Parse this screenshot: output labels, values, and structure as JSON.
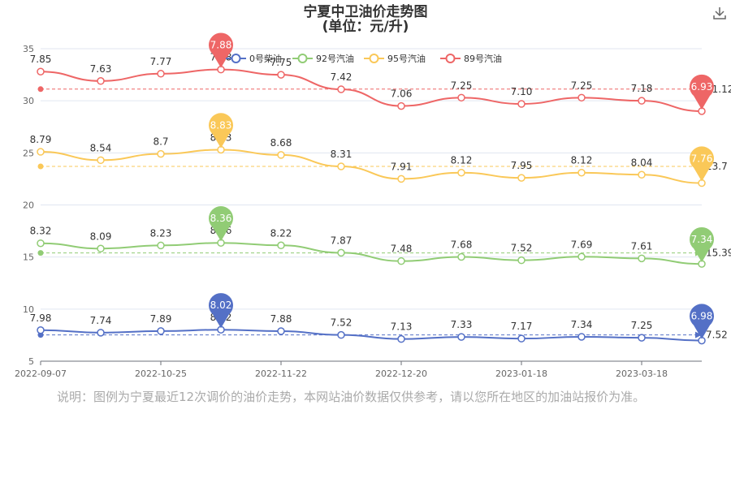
{
  "title": "宁夏中卫油价走势图",
  "subtitle": "(单位：元/升)",
  "download_icon": "download-icon",
  "note": "说明：图例为宁夏最近12次调价的油价走势，本网站油价数据仅供参考，请以您所在地区的加油站报价为准。",
  "chart_data": {
    "type": "line",
    "title": "宁夏中卫油价走势图",
    "subtitle": "(单位：元/升)",
    "legend_position": "top-center",
    "grid": true,
    "ylim": [
      5,
      35
    ],
    "y_ticks": [
      "5",
      "10",
      "15",
      "20",
      "25",
      "30",
      "35"
    ],
    "x_ticks": [
      "2022-09-07",
      "2022-10-25",
      "2022-11-22",
      "2022-12-20",
      "2023-01-18",
      "2023-03-18"
    ],
    "series": [
      {
        "name": "0号柴油",
        "color": "#5470c6",
        "values": [
          7.98,
          7.74,
          7.89,
          8.02,
          7.88,
          7.52,
          7.13,
          7.33,
          7.17,
          7.34,
          7.25,
          6.98
        ],
        "plot_values": [
          7.98,
          7.74,
          7.89,
          8.02,
          7.88,
          7.52,
          7.13,
          7.33,
          7.17,
          7.34,
          7.25,
          6.98
        ],
        "labels": [
          "7.98",
          "7.74",
          "7.89",
          "8.02",
          "7.88",
          "7.52",
          "7.13",
          "7.33",
          "7.17",
          "7.34",
          "7.25",
          ""
        ],
        "max_label": "8.02",
        "min_label": "6.98",
        "avg_label": "7.52",
        "avg_value": 7.52
      },
      {
        "name": "92号汽油",
        "color": "#91cc75",
        "values": [
          8.32,
          8.09,
          8.23,
          8.36,
          8.22,
          7.87,
          7.48,
          7.68,
          7.52,
          7.69,
          7.61,
          7.34
        ],
        "plot_values": [
          16.32,
          15.81,
          16.11,
          16.36,
          16.12,
          15.41,
          14.61,
          15.01,
          14.69,
          15.03,
          14.87,
          14.34
        ],
        "labels": [
          "8.32",
          "8.09",
          "8.23",
          "8.36",
          "8.22",
          "7.87",
          "7.48",
          "7.68",
          "7.52",
          "7.69",
          "7.61",
          ""
        ],
        "max_label": "8.36",
        "min_label": "7.34",
        "avg_label": "15.39",
        "avg_value": 15.39
      },
      {
        "name": "95号汽油",
        "color": "#fac858",
        "values": [
          8.79,
          8.54,
          8.7,
          8.83,
          8.68,
          8.31,
          7.91,
          8.12,
          7.95,
          8.12,
          8.04,
          7.76
        ],
        "plot_values": [
          25.1,
          24.3,
          24.9,
          25.3,
          24.8,
          23.7,
          22.5,
          23.1,
          22.6,
          23.1,
          22.9,
          22.1
        ],
        "labels": [
          "8.79",
          "8.54",
          "8.7",
          "8.83",
          "8.68",
          "8.31",
          "7.91",
          "8.12",
          "7.95",
          "8.12",
          "8.04",
          ""
        ],
        "max_label": "8.83",
        "min_label": "7.76",
        "avg_label": "23.7",
        "avg_value": 23.7
      },
      {
        "name": "89号汽油",
        "color": "#ee6666",
        "values": [
          7.85,
          7.63,
          7.77,
          7.88,
          7.75,
          7.42,
          7.06,
          7.25,
          7.1,
          7.25,
          7.18,
          6.93
        ],
        "plot_values": [
          32.8,
          31.9,
          32.6,
          33.0,
          32.5,
          31.1,
          29.5,
          30.3,
          29.7,
          30.3,
          30.0,
          29.0
        ],
        "labels": [
          "7.85",
          "7.63",
          "7.77",
          "7.88",
          "7.75",
          "7.42",
          "7.06",
          "7.25",
          "7.10",
          "7.25",
          "7.18",
          ""
        ],
        "max_label": "7.88",
        "min_label": "6.93",
        "avg_label": "31.12",
        "avg_value": 31.12
      }
    ]
  }
}
